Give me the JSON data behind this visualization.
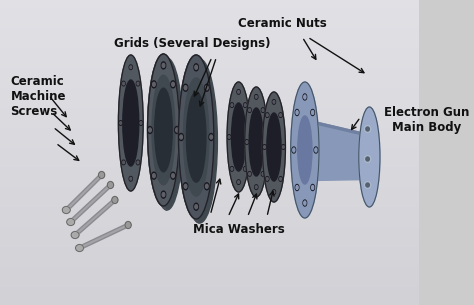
{
  "background_color_top": "#d8d8d8",
  "background_color_bottom": "#b8bcc8",
  "labels": {
    "ceramic_nuts": "Ceramic Nuts",
    "grids": "Grids (Several Designs)",
    "ceramic_screws": "Ceramic\nMachine\nScrews",
    "electron_gun": "Electron Gun\nMain Body",
    "mica_washers": "Mica Washers"
  },
  "text_color": "#111111",
  "text_fontsize": 8.5,
  "disk_color": "#5a5f6a",
  "disk_edge": "#222228",
  "disk_inner": "#303038",
  "body_color": "#8898b8",
  "body_edge": "#445566",
  "screw_shaft": "#888888",
  "screw_head": "#aaaaaa"
}
